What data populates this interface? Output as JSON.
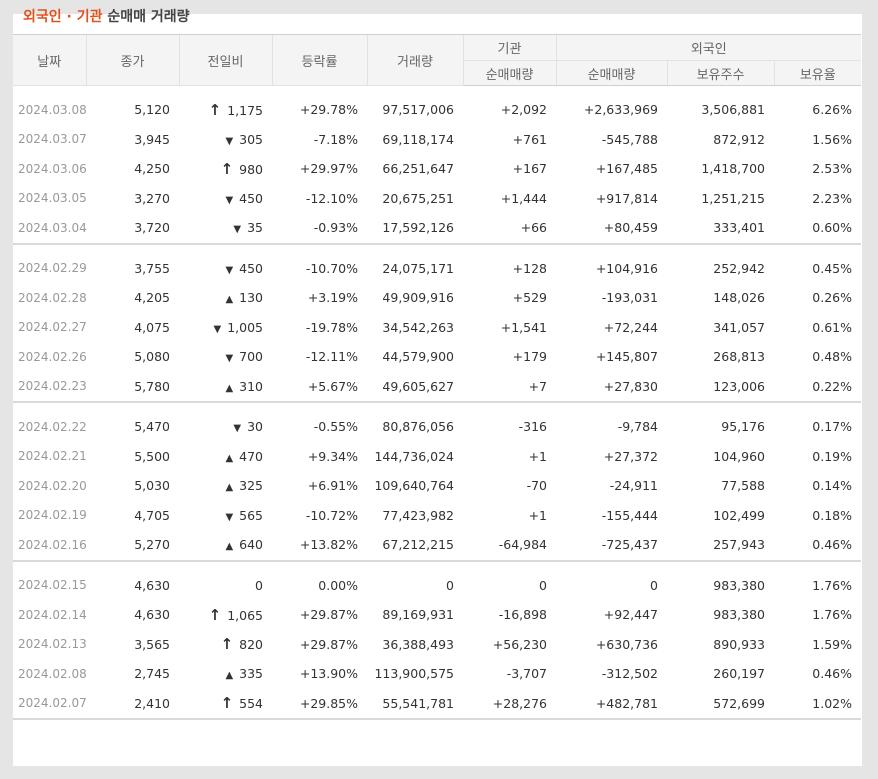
{
  "title": {
    "accent": "외국인 · 기관",
    "rest": "순매매 거래량"
  },
  "headers": {
    "date": "날짜",
    "close": "종가",
    "change": "전일비",
    "rate": "등락률",
    "volume": "거래량",
    "inst_group": "기관",
    "foreign_group": "외국인",
    "inst_net": "순매매량",
    "foreign_net": "순매매량",
    "holdings": "보유주수",
    "ratio": "보유율"
  },
  "groups": [
    [
      {
        "date": "2024.03.08",
        "close": "5,120",
        "dir": "upper",
        "change": "1,175",
        "rate": "+29.78%",
        "volume": "97,517,006",
        "inst": "+2,092",
        "foreign": "+2,633,969",
        "holdings": "3,506,881",
        "ratio": "6.26%"
      },
      {
        "date": "2024.03.07",
        "close": "3,945",
        "dir": "down",
        "change": "305",
        "rate": "-7.18%",
        "volume": "69,118,174",
        "inst": "+761",
        "foreign": "-545,788",
        "holdings": "872,912",
        "ratio": "1.56%"
      },
      {
        "date": "2024.03.06",
        "close": "4,250",
        "dir": "upper",
        "change": "980",
        "rate": "+29.97%",
        "volume": "66,251,647",
        "inst": "+167",
        "foreign": "+167,485",
        "holdings": "1,418,700",
        "ratio": "2.53%"
      },
      {
        "date": "2024.03.05",
        "close": "3,270",
        "dir": "down",
        "change": "450",
        "rate": "-12.10%",
        "volume": "20,675,251",
        "inst": "+1,444",
        "foreign": "+917,814",
        "holdings": "1,251,215",
        "ratio": "2.23%"
      },
      {
        "date": "2024.03.04",
        "close": "3,720",
        "dir": "down",
        "change": "35",
        "rate": "-0.93%",
        "volume": "17,592,126",
        "inst": "+66",
        "foreign": "+80,459",
        "holdings": "333,401",
        "ratio": "0.60%"
      }
    ],
    [
      {
        "date": "2024.02.29",
        "close": "3,755",
        "dir": "down",
        "change": "450",
        "rate": "-10.70%",
        "volume": "24,075,171",
        "inst": "+128",
        "foreign": "+104,916",
        "holdings": "252,942",
        "ratio": "0.45%"
      },
      {
        "date": "2024.02.28",
        "close": "4,205",
        "dir": "up",
        "change": "130",
        "rate": "+3.19%",
        "volume": "49,909,916",
        "inst": "+529",
        "foreign": "-193,031",
        "holdings": "148,026",
        "ratio": "0.26%"
      },
      {
        "date": "2024.02.27",
        "close": "4,075",
        "dir": "down",
        "change": "1,005",
        "rate": "-19.78%",
        "volume": "34,542,263",
        "inst": "+1,541",
        "foreign": "+72,244",
        "holdings": "341,057",
        "ratio": "0.61%"
      },
      {
        "date": "2024.02.26",
        "close": "5,080",
        "dir": "down",
        "change": "700",
        "rate": "-12.11%",
        "volume": "44,579,900",
        "inst": "+179",
        "foreign": "+145,807",
        "holdings": "268,813",
        "ratio": "0.48%"
      },
      {
        "date": "2024.02.23",
        "close": "5,780",
        "dir": "up",
        "change": "310",
        "rate": "+5.67%",
        "volume": "49,605,627",
        "inst": "+7",
        "foreign": "+27,830",
        "holdings": "123,006",
        "ratio": "0.22%"
      }
    ],
    [
      {
        "date": "2024.02.22",
        "close": "5,470",
        "dir": "down",
        "change": "30",
        "rate": "-0.55%",
        "volume": "80,876,056",
        "inst": "-316",
        "foreign": "-9,784",
        "holdings": "95,176",
        "ratio": "0.17%"
      },
      {
        "date": "2024.02.21",
        "close": "5,500",
        "dir": "up",
        "change": "470",
        "rate": "+9.34%",
        "volume": "144,736,024",
        "inst": "+1",
        "foreign": "+27,372",
        "holdings": "104,960",
        "ratio": "0.19%"
      },
      {
        "date": "2024.02.20",
        "close": "5,030",
        "dir": "up",
        "change": "325",
        "rate": "+6.91%",
        "volume": "109,640,764",
        "inst": "-70",
        "foreign": "-24,911",
        "holdings": "77,588",
        "ratio": "0.14%"
      },
      {
        "date": "2024.02.19",
        "close": "4,705",
        "dir": "down",
        "change": "565",
        "rate": "-10.72%",
        "volume": "77,423,982",
        "inst": "+1",
        "foreign": "-155,444",
        "holdings": "102,499",
        "ratio": "0.18%"
      },
      {
        "date": "2024.02.16",
        "close": "5,270",
        "dir": "up",
        "change": "640",
        "rate": "+13.82%",
        "volume": "67,212,215",
        "inst": "-64,984",
        "foreign": "-725,437",
        "holdings": "257,943",
        "ratio": "0.46%"
      }
    ],
    [
      {
        "date": "2024.02.15",
        "close": "4,630",
        "dir": "none",
        "change": "0",
        "rate": "0.00%",
        "volume": "0",
        "inst": "0",
        "foreign": "0",
        "holdings": "983,380",
        "ratio": "1.76%"
      },
      {
        "date": "2024.02.14",
        "close": "4,630",
        "dir": "upper",
        "change": "1,065",
        "rate": "+29.87%",
        "volume": "89,169,931",
        "inst": "-16,898",
        "foreign": "+92,447",
        "holdings": "983,380",
        "ratio": "1.76%"
      },
      {
        "date": "2024.02.13",
        "close": "3,565",
        "dir": "upper",
        "change": "820",
        "rate": "+29.87%",
        "volume": "36,388,493",
        "inst": "+56,230",
        "foreign": "+630,736",
        "holdings": "890,933",
        "ratio": "1.59%"
      },
      {
        "date": "2024.02.08",
        "close": "2,745",
        "dir": "up",
        "change": "335",
        "rate": "+13.90%",
        "volume": "113,900,575",
        "inst": "-3,707",
        "foreign": "-312,502",
        "holdings": "260,197",
        "ratio": "0.46%"
      },
      {
        "date": "2024.02.07",
        "close": "2,410",
        "dir": "upper",
        "change": "554",
        "rate": "+29.85%",
        "volume": "55,541,781",
        "inst": "+28,276",
        "foreign": "+482,781",
        "holdings": "572,699",
        "ratio": "1.02%"
      }
    ]
  ]
}
